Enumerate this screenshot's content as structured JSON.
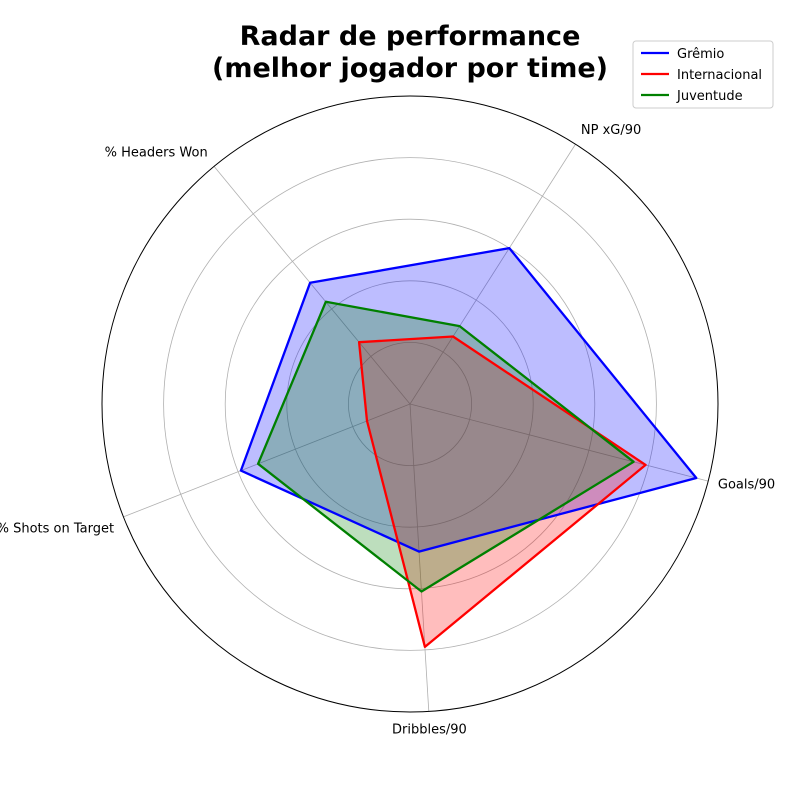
{
  "chart_data": {
    "type": "radar",
    "title": "Radar de performance\n(melhor jogador por time)",
    "axes": [
      "Goals/90",
      "NP xG/90",
      "% Headers Won",
      "% Shots on Target",
      "Dribbles/90"
    ],
    "rlim": [
      0,
      1
    ],
    "grid": true,
    "legend_position": "top-right",
    "series": [
      {
        "name": "Grêmio",
        "color": "#0000ff",
        "values": [
          0.96,
          0.6,
          0.51,
          0.59,
          0.48
        ]
      },
      {
        "name": "Internacional",
        "color": "#ff0000",
        "values": [
          0.79,
          0.26,
          0.26,
          0.15,
          0.79
        ]
      },
      {
        "name": "Juventude",
        "color": "#008000",
        "values": [
          0.75,
          0.3,
          0.43,
          0.53,
          0.61
        ]
      }
    ]
  }
}
